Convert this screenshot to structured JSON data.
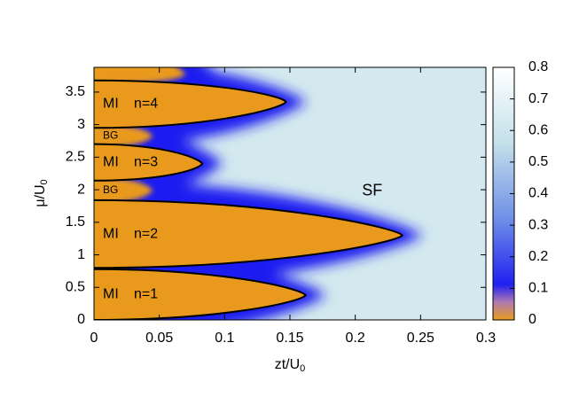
{
  "chart_data": {
    "type": "phase-diagram",
    "xlabel": "zt/U",
    "xlabel_sub": "0",
    "ylabel": "μ/U",
    "ylabel_sub": "0",
    "xlim": [
      0,
      0.3
    ],
    "xticks": [
      0,
      0.05,
      0.1,
      0.15,
      0.2,
      0.25,
      0.3
    ],
    "ylim": [
      0,
      3.88
    ],
    "yticks": [
      0,
      0.5,
      1,
      1.5,
      2,
      2.5,
      3,
      3.5
    ],
    "clim": [
      0,
      0.8
    ],
    "cticks": [
      0,
      0.1,
      0.2,
      0.3,
      0.4,
      0.5,
      0.6,
      0.7,
      0.8
    ],
    "phase_label": "SF",
    "lobes": [
      {
        "label": "MI",
        "n_label": "n=1",
        "ymin": 0,
        "ymax": 0.78,
        "tip_x": 0.162,
        "tip_y": 0.38
      },
      {
        "label": "MI",
        "n_label": "n=2",
        "ymin": 0.8,
        "ymax": 1.84,
        "tip_x": 0.236,
        "tip_y": 1.3
      },
      {
        "label": "MI",
        "n_label": "n=3",
        "ymin": 2.14,
        "ymax": 2.7,
        "tip_x": 0.083,
        "tip_y": 2.4
      },
      {
        "label": "MI",
        "n_label": "n=4",
        "ymin": 2.95,
        "ymax": 3.68,
        "tip_x": 0.147,
        "tip_y": 3.35
      }
    ],
    "glass_regions": [
      {
        "label": "BG",
        "ymin": 1.84,
        "ymax": 2.14,
        "xmax": 0.045
      },
      {
        "label": "BG",
        "ymin": 2.7,
        "ymax": 2.95,
        "xmax": 0.045
      }
    ],
    "top_region": {
      "ymin": 3.68,
      "ymax": 3.88,
      "xmax": 0.07
    },
    "colors": {
      "insulator": "#e99a1c",
      "superfluid": "#d3e9ef",
      "edge": "#1b1bf0",
      "outline": "#000000"
    }
  }
}
